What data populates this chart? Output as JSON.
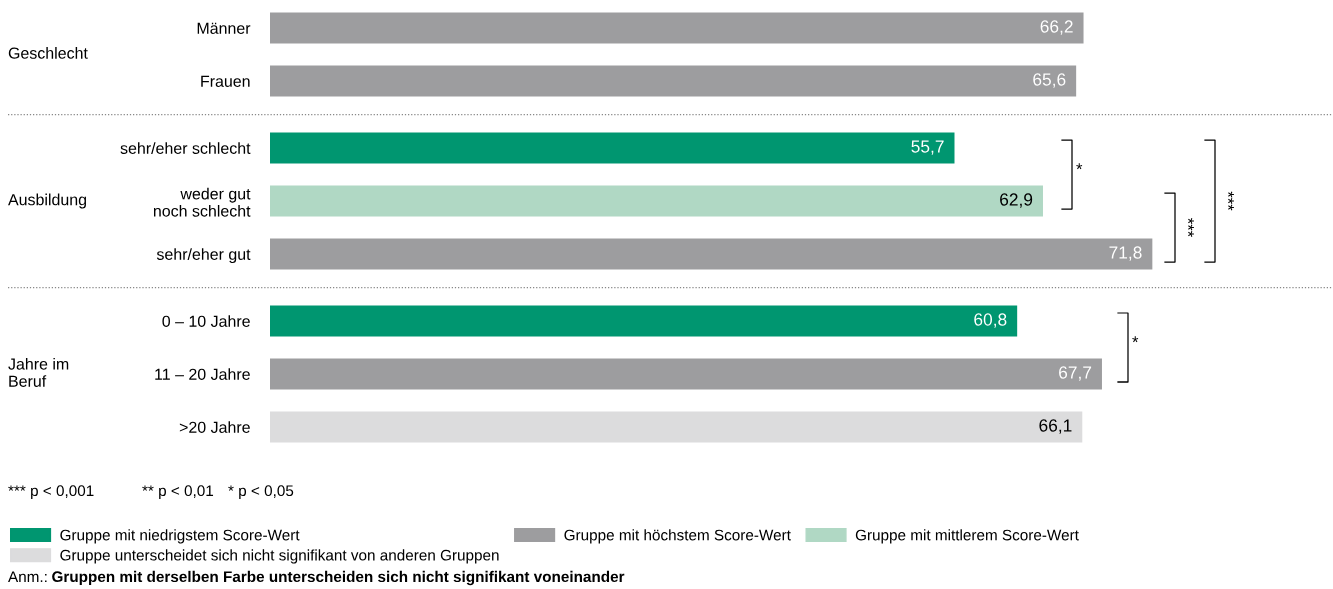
{
  "chart_data": {
    "type": "bar",
    "orientation": "horizontal",
    "categories": [
      "Männer",
      "Frauen",
      "sehr/eher schlecht",
      "weder gut\nnoch schlecht",
      "sehr/eher gut",
      "0 – 10 Jahre",
      "11 – 20 Jahre",
      ">20 Jahre"
    ],
    "series": [
      {
        "name": "Gruppe mit niedrigstem Score-Wert",
        "color": "#009670",
        "values": [
          null,
          null,
          55.7,
          null,
          null,
          60.8,
          null,
          null
        ],
        "value_labels": [
          null,
          null,
          "55,7",
          null,
          null,
          "60,8",
          null,
          null
        ]
      },
      {
        "name": "Gruppe mit höchstem Score-Wert",
        "color": "#9d9d9f",
        "values": [
          66.2,
          65.6,
          null,
          null,
          71.8,
          null,
          67.7,
          null
        ],
        "value_labels": [
          "66,2",
          "65,6",
          null,
          null,
          "71,8",
          null,
          "67,7",
          null
        ]
      },
      {
        "name": "Gruppe mit mittlerem Score-Wert",
        "color": "#b0d8c4",
        "values": [
          null,
          null,
          null,
          62.9,
          null,
          null,
          null,
          null
        ],
        "value_labels": [
          null,
          null,
          null,
          "62,9",
          null,
          null,
          null,
          null
        ]
      },
      {
        "name": "Gruppe unterscheidet sich nicht signifikant von anderen Gruppen",
        "color": "#dcdcdd",
        "values": [
          null,
          null,
          null,
          null,
          null,
          null,
          null,
          66.1
        ],
        "value_labels": [
          null,
          null,
          null,
          null,
          null,
          null,
          null,
          "66,1"
        ]
      }
    ],
    "xlim": [
      0,
      86.5
    ],
    "tick_labels": "y",
    "grid": false,
    "legend": "bottom",
    "annotations": [
      "Geschlecht",
      "Ausbildung",
      "Jahre im\nBeruf",
      "*",
      "***",
      "***",
      "*",
      "*** p < 0,001",
      "** p < 0,01",
      "* p < 0,05",
      "Anm.:",
      "Gruppen mit derselben Farbe unterscheiden sich nicht signifikant voneinander"
    ]
  }
}
